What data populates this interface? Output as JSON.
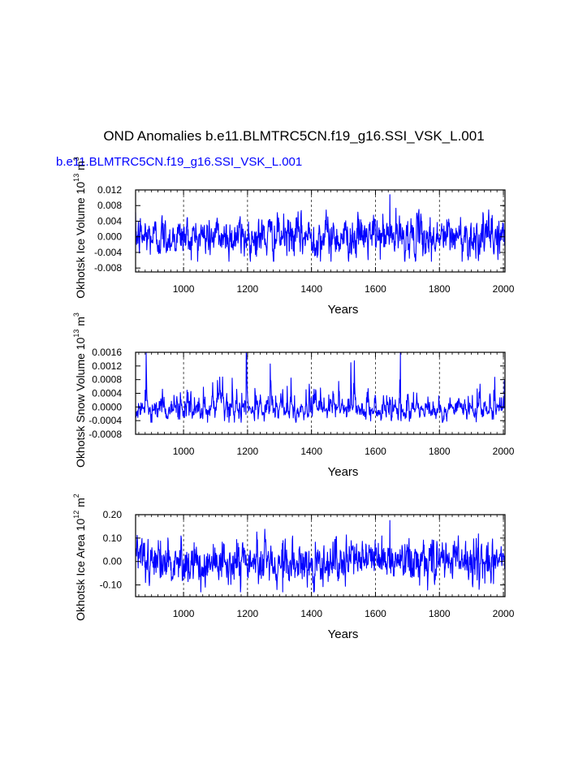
{
  "title": "OND Anomalies b.e11.BLMTRC5CN.f19_g16.SSI_VSK_L.001",
  "subtitle": "b.e11.BLMTRC5CN.f19_g16.SSI_VSK_L.001",
  "colors": {
    "series": "#0000ff",
    "subtitle": "#0000ff",
    "axes": "#000000"
  },
  "chart_data": [
    {
      "type": "line",
      "title": "OND Anomalies b.e11.BLMTRC5CN.f19_g16.SSI_VSK_L.001",
      "subtitle": "b.e11.BLMTRC5CN.f19_g16.SSI_VSK_L.001",
      "xlabel": "Years",
      "ylabel": {
        "text": "Okhotsk Ice Volume 10",
        "exp": "13",
        "unit": " m",
        "unit_exp": "3"
      },
      "xlim": [
        850,
        2005
      ],
      "ylim": [
        -0.009,
        0.012
      ],
      "xticks": [
        1000,
        1200,
        1400,
        1600,
        1800,
        2000
      ],
      "xtick_labels": [
        "1000",
        "1200",
        "1400",
        "1600",
        "1800",
        "2000"
      ],
      "yticks": [
        -0.008,
        -0.004,
        0.0,
        0.004,
        0.008,
        0.012
      ],
      "ytick_labels": [
        "-0.008",
        "-0.004",
        "0.000",
        "0.004",
        "0.008",
        "0.012"
      ],
      "grid": "dashed vertical lines at x ticks",
      "series": [
        {
          "color": "#0000ff",
          "x_start": 850,
          "x_end": 2005,
          "x_step": 1,
          "mean": 0.0,
          "sd": 0.0026,
          "max": 0.0108,
          "max_x": 1645,
          "min": -0.0063,
          "min_x": 1775
        }
      ]
    },
    {
      "type": "line",
      "xlabel": "Years",
      "ylabel": {
        "text": "Okhotsk Snow Volume 10",
        "exp": "13",
        "unit": " m",
        "unit_exp": "3"
      },
      "xlim": [
        850,
        2005
      ],
      "ylim": [
        -0.0008,
        0.0016
      ],
      "xticks": [
        1000,
        1200,
        1400,
        1600,
        1800,
        2000
      ],
      "xtick_labels": [
        "1000",
        "1200",
        "1400",
        "1600",
        "1800",
        "2000"
      ],
      "yticks": [
        -0.0008,
        -0.0004,
        0.0,
        0.0004,
        0.0008,
        0.0012,
        0.0016
      ],
      "ytick_labels": [
        "-0.0008",
        "-0.0004",
        "0.0000",
        "0.0004",
        "0.0008",
        "0.0012",
        "0.0016"
      ],
      "grid": "dashed vertical lines at x ticks",
      "series": [
        {
          "color": "#0000ff",
          "x_start": 850,
          "x_end": 2005,
          "x_step": 1,
          "mean": 0.0,
          "sd": 0.00025,
          "max": 0.00158,
          "max_x": 1678,
          "min": -0.00045,
          "min_x": 1180
        }
      ]
    },
    {
      "type": "line",
      "xlabel": "Years",
      "ylabel": {
        "text": "Okhotsk Ice Area 10",
        "exp": "12",
        "unit": " m",
        "unit_exp": "2"
      },
      "xlim": [
        850,
        2005
      ],
      "ylim": [
        -0.15,
        0.2
      ],
      "xticks": [
        1000,
        1200,
        1400,
        1600,
        1800,
        2000
      ],
      "xtick_labels": [
        "1000",
        "1200",
        "1400",
        "1600",
        "1800",
        "2000"
      ],
      "yticks": [
        -0.1,
        0.0,
        0.1,
        0.2
      ],
      "ytick_labels": [
        "-0.10",
        "0.00",
        "0.10",
        "0.20"
      ],
      "grid": "dashed vertical lines at x ticks",
      "series": [
        {
          "color": "#0000ff",
          "x_start": 850,
          "x_end": 2005,
          "x_step": 1,
          "mean": 0.0,
          "sd": 0.045,
          "max": 0.175,
          "max_x": 1645,
          "min": -0.13,
          "min_x": 1310
        }
      ]
    }
  ]
}
